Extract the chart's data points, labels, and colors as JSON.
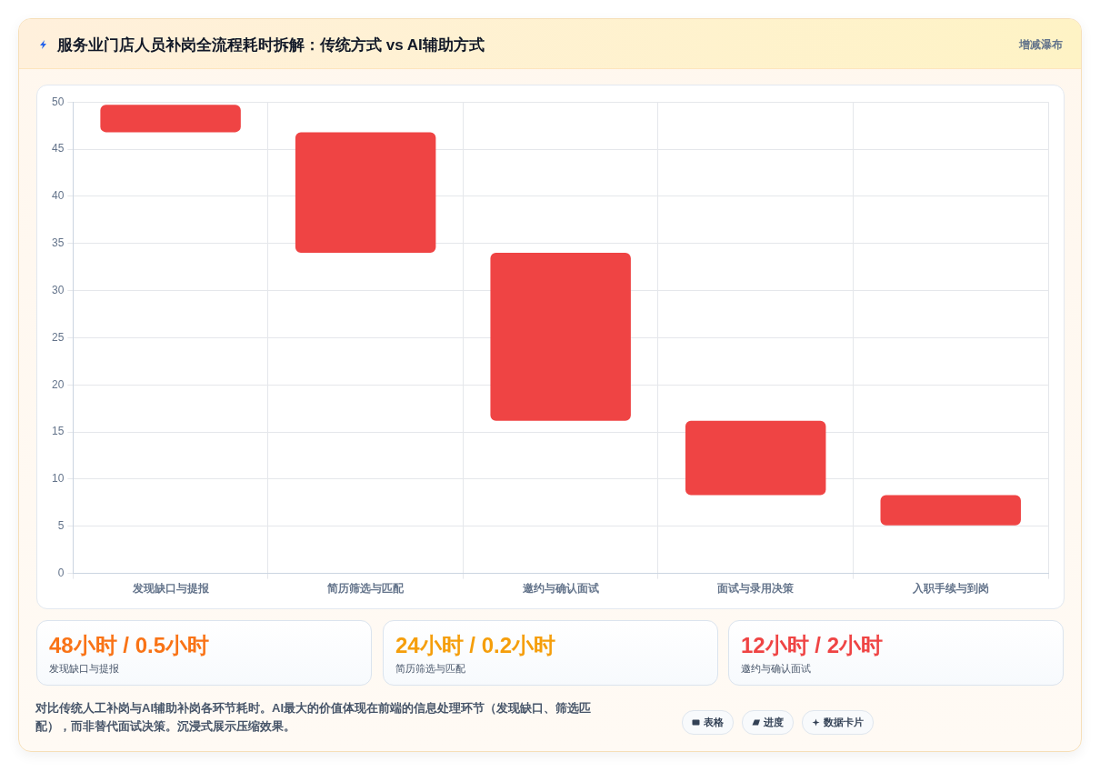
{
  "chart_data": {
    "type": "bar",
    "title": "服务业门店人员补岗全流程耗时拆解：传统方式 vs AI辅助方式",
    "subtitle": "增减瀑布",
    "categories": [
      "发现缺口与提报",
      "简历筛选与匹配",
      "邀约与确认面试",
      "面试与录用决策",
      "入职手续与到岗"
    ],
    "base": [
      46.8,
      34,
      16.2,
      8.3,
      5.1
    ],
    "values": [
      2.9,
      12.8,
      17.8,
      7.9,
      3.2
    ],
    "color": "#ef4444",
    "ylim": [
      0,
      50
    ],
    "yticks": [
      0,
      5,
      10,
      15,
      20,
      25,
      30,
      35,
      40,
      45,
      50
    ],
    "grid": true,
    "annotations": [
      "48小时 / 0.5小时",
      "发现缺口与提报",
      "24小时 / 0.2小时",
      "简历筛选与匹配",
      "12小时 / 2小时",
      "邀约与确认面试",
      "对比传统人工补岗与AI辅助补岗各环节耗时。AI最大的价值体现在前端的信息处理环节（发现缺口、筛选匹配），而非替代面试决策。沉浸式展示压缩效果。",
      "表格",
      "进度",
      "数据卡片"
    ]
  }
}
